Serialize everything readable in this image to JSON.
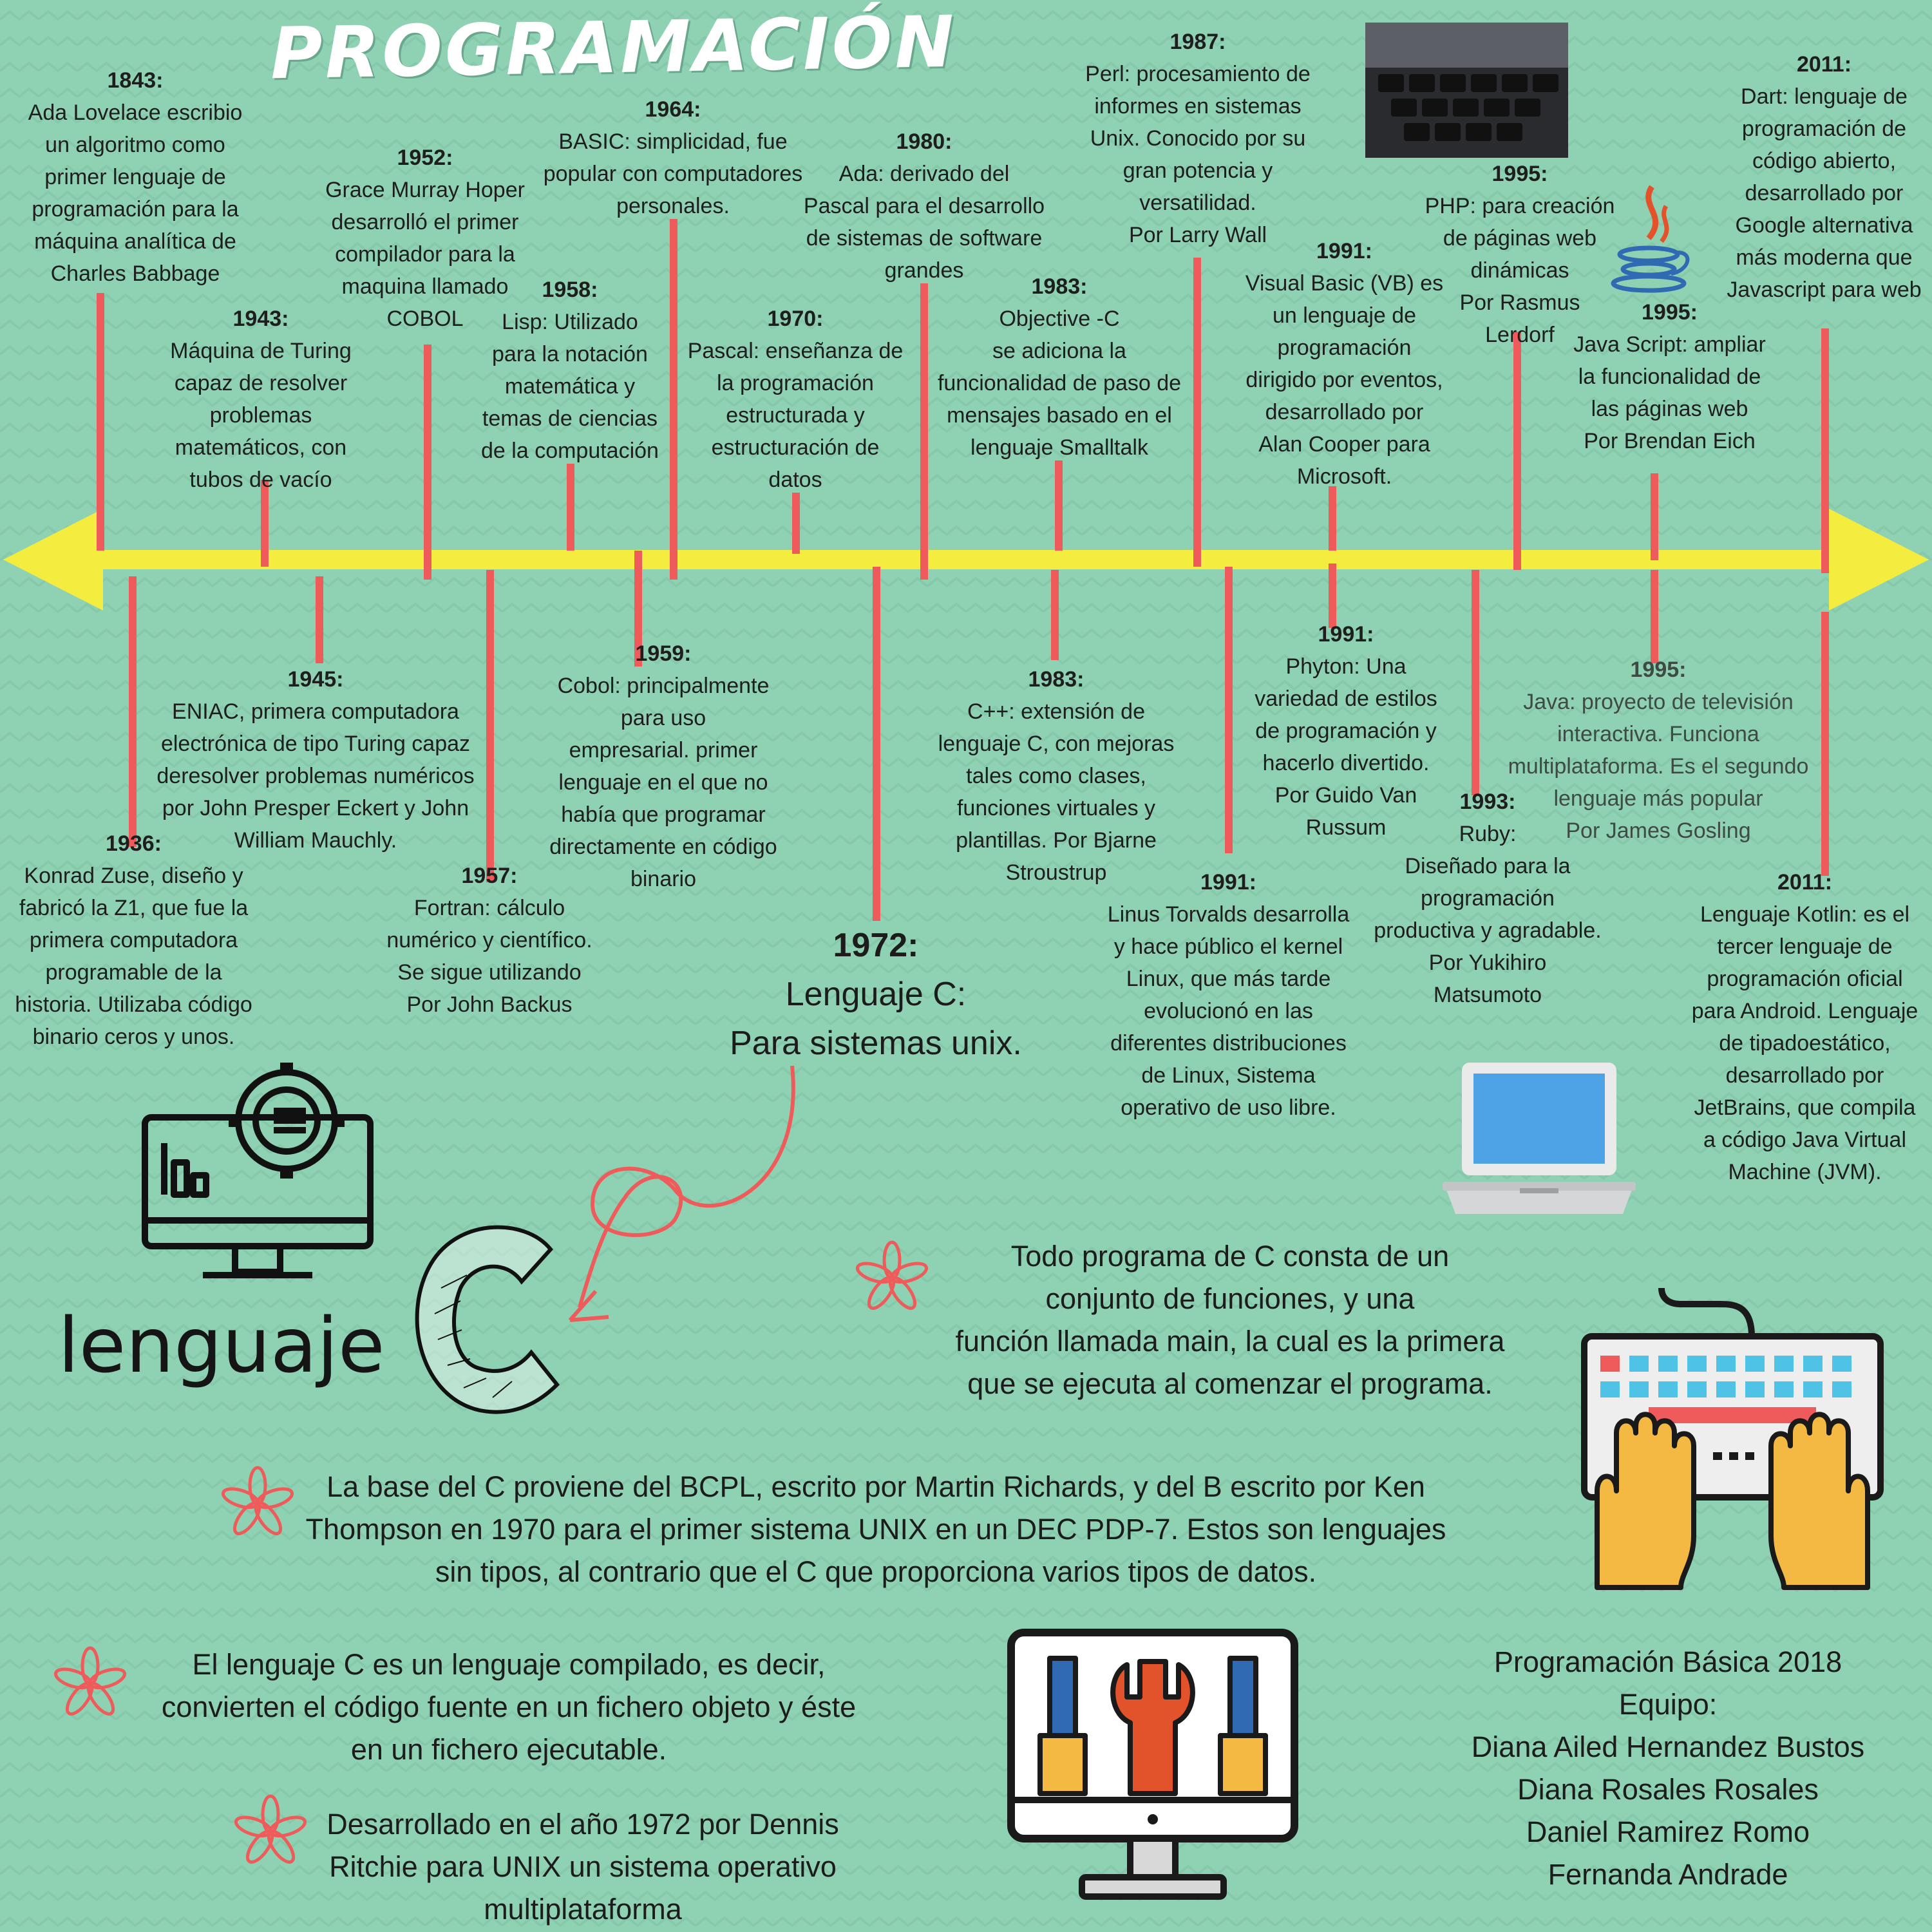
{
  "title": "PROGRAMACIÓN",
  "timeline_above": [
    {
      "year": "1843:",
      "text": "Ada Lovelace escribio\nun algoritmo como\nprimer lenguaje de\nprogramación  para la\nmáquina analítica de\nCharles Babbage"
    },
    {
      "year": "1943:",
      "text": "Máquina de Turing\ncapaz de resolver\nproblemas\nmatemáticos, con\ntubos de vacío"
    },
    {
      "year": "1952:",
      "text": "Grace Murray Hoper\ndesarrolló el primer\ncompilador  para la\nmaquina llamado\nCOBOL"
    },
    {
      "year": "1958:",
      "text": "Lisp: Utilizado\npara la notación\nmatemática y\ntemas de ciencias\nde la computación"
    },
    {
      "year": "1964:",
      "text": "BASIC: simplicidad, fue\npopular con computadores\npersonales."
    },
    {
      "year": "1970:",
      "text": "Pascal: enseñanza de\nla programación\nestructurada y\nestructuración de\ndatos"
    },
    {
      "year": "1980:",
      "text": "Ada: derivado del\nPascal para el desarrollo\nde sistemas de software\ngrandes"
    },
    {
      "year": "1983:",
      "text": "Objective -C\nse adiciona la\nfuncionalidad de paso de\nmensajes basado en el\nlenguaje Smalltalk"
    },
    {
      "year": "1987:",
      "text": "Perl: procesamiento de\ninformes en sistemas\nUnix. Conocido por su\ngran potencia y\nversatilidad.\nPor Larry Wall"
    },
    {
      "year": "1991:",
      "text": "Visual Basic (VB) es\nun lenguaje de\nprogramación\ndirigido por eventos,\ndesarrollado por\nAlan Cooper para\nMicrosoft."
    },
    {
      "year": "1995:",
      "text": "PHP: para creación\nde páginas web\ndinámicas\nPor Rasmus\nLerdorf"
    },
    {
      "year": "1995:",
      "text": "Java Script: ampliar\nla funcionalidad de\nlas páginas web\nPor Brendan Eich"
    },
    {
      "year": "2011:",
      "text": "Dart: lenguaje de\nprogramación de\ncódigo abierto,\ndesarrollado por\nGoogle alternativa\nmás moderna que\nJavascript para web"
    }
  ],
  "timeline_below": [
    {
      "year": "1936:",
      "text": "Konrad Zuse, diseño y\nfabricó la Z1, que fue la\nprimera computadora\nprogramable de la\nhistoria. Utilizaba código\nbinario ceros y unos."
    },
    {
      "year": "1945:",
      "text": "ENIAC, primera computadora\nelectrónica  de tipo Turing capaz\nderesolver problemas numéricos\npor John Presper Eckert y John\nWilliam Mauchly."
    },
    {
      "year": "1957:",
      "text": "Fortran: cálculo\nnumérico y científico.\nSe sigue utilizando\nPor John Backus"
    },
    {
      "year": "1959:",
      "text": "Cobol: principalmente\npara uso\nempresarial. primer\nlenguaje en el que no\nhabía que programar\ndirectamente en código\nbinario"
    },
    {
      "year": "1983:",
      "text": "C++:  extensión de\nlenguaje C, con mejoras\ntales como clases,\nfunciones virtuales y\nplantillas. Por Bjarne\nStroustrup"
    },
    {
      "year": "1991:",
      "text": "Linus Torvalds desarrolla\ny hace público el kernel\nLinux, que más tarde\nevolucionó en las\ndiferentes distribuciones\nde Linux, Sistema\noperativo de uso libre."
    },
    {
      "year": "1991:",
      "text": "Phyton: Una\nvariedad de estilos\nde programación y\nhacerlo divertido.\nPor Guido Van\nRussum"
    },
    {
      "year": "1993:",
      "text": "Ruby:\nDiseñado para la\nprogramación\nproductiva y agradable.\nPor Yukihiro\nMatsumoto"
    },
    {
      "year": "1995:",
      "text": "Java: proyecto de televisión\ninteractiva. Funciona\nmultiplataforma. Es el segundo\nlenguaje más popular\nPor James Gosling"
    },
    {
      "year": "2011:",
      "text": "Lenguaje Kotlin: es el\ntercer lenguaje de\nprogramación oficial\npara Android.  Lenguaje\nde tipadoestático,\ndesarrollado por\nJetBrains, que compila\na código Java Virtual\nMachine (JVM)."
    }
  ],
  "highlight": {
    "year": "1972:",
    "text": "Lenguaje C:\nPara sistemas unix."
  },
  "lenguaje_word": "lenguaje",
  "notes": [
    "Todo programa de C consta de un\nconjunto de funciones, y una\nfunción llamada main, la cual es la primera\nque se ejecuta al comenzar el programa.",
    "La base del C proviene del BCPL, escrito por Martin Richards, y del B escrito por Ken\nThompson en 1970 para el primer sistema UNIX en un DEC PDP-7. Estos son lenguajes\nsin tipos, al contrario que el C que proporciona varios tipos de datos.",
    "El lenguaje C es un lenguaje compilado, es decir,\nconvierten el código fuente en un fichero objeto y éste\nen un fichero ejecutable.",
    "Desarrollado en el año 1972 por Dennis\nRitchie para UNIX un sistema operativo\nmultiplataforma"
  ],
  "team": {
    "course": "Programación Básica 2018",
    "label": "Equipo:",
    "members": [
      "Diana Ailed Hernandez Bustos",
      "Diana Rosales Rosales",
      "Daniel Ramirez Romo",
      "Fernanda Andrade"
    ]
  },
  "icons": [
    "keyboard-photo-icon",
    "java-logo-icon",
    "laptop-icon",
    "monitor-gear-icon",
    "letter-c-icon",
    "arrow-icon",
    "typing-keyboard-icon",
    "tools-monitor-icon",
    "asterisk-icon"
  ],
  "colors": {
    "background": "#8fd1b3",
    "axis": "#f4ec3f",
    "ticks": "#ef5b5b",
    "asterisk": "#ef5b5b"
  }
}
